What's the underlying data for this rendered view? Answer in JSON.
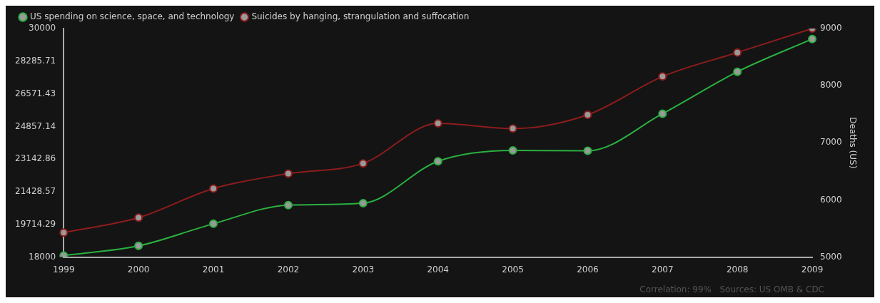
{
  "chart_data": {
    "type": "line",
    "categories": [
      "1999",
      "2000",
      "2001",
      "2002",
      "2003",
      "2004",
      "2005",
      "2006",
      "2007",
      "2008",
      "2009"
    ],
    "series": [
      {
        "name": "US spending on science, space, and technology",
        "color": "#2ab040",
        "values": [
          18080,
          18590,
          19750,
          20730,
          20830,
          23030,
          23600,
          23580,
          25530,
          27730,
          29450
        ]
      },
      {
        "name": "Suicides by hanging, strangulation and suffocation",
        "color": "#8e1c1c",
        "axis": "y2",
        "values": [
          5430,
          5690,
          6200,
          6460,
          6640,
          7340,
          7250,
          7490,
          8160,
          8580,
          9000
        ]
      }
    ],
    "ylim": [
      18000,
      30000
    ],
    "yticks": [
      18000,
      19714.29,
      21428.57,
      23142.86,
      24857.14,
      26571.43,
      28285.71,
      30000
    ],
    "y2lim": [
      5000,
      9000
    ],
    "y2ticks": [
      5000,
      6000,
      7000,
      8000,
      9000
    ],
    "y2label": "Deaths (US)",
    "legend": "top left",
    "grid": false,
    "marker": "circle",
    "line_style": "solid",
    "annotations": [
      "Correlation: 99%   Sources: US OMB & CDC"
    ]
  }
}
